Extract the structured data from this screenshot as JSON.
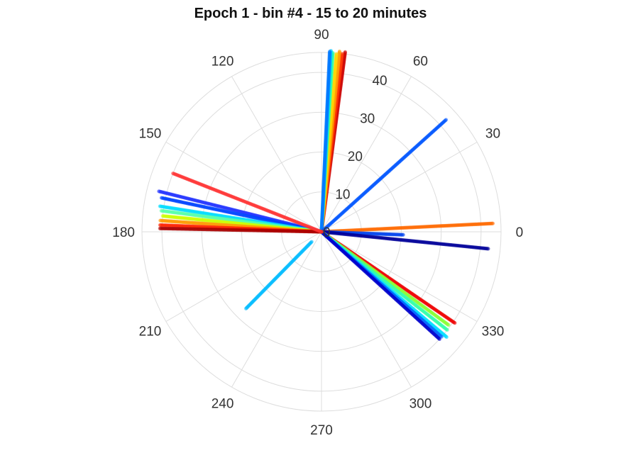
{
  "chart_data": {
    "type": "scatter",
    "subtype": "polar",
    "title": "Epoch 1 - bin #4 - 15 to 20 minutes",
    "angle_unit": "degrees",
    "angle_ticks": [
      "0",
      "30",
      "60",
      "90",
      "120",
      "150",
      "180",
      "210",
      "240",
      "270",
      "300",
      "330"
    ],
    "angle_tick_values": [
      0,
      30,
      60,
      90,
      120,
      150,
      180,
      210,
      240,
      270,
      300,
      330
    ],
    "radial_ticks": [
      "0",
      "10",
      "20",
      "30",
      "40"
    ],
    "radial_tick_values": [
      0,
      10,
      20,
      30,
      40
    ],
    "rlim": [
      0,
      45
    ],
    "grid": true,
    "colormap": "jet (point color varies by series)",
    "series": [
      {
        "angle": 82.5,
        "r_min": 0,
        "r_max": 45.5,
        "color": "#cc0000"
      },
      {
        "angle": 83.4,
        "r_min": 0,
        "r_max": 45.0,
        "color": "#ff3300"
      },
      {
        "angle": 84.3,
        "r_min": 0,
        "r_max": 45.5,
        "color": "#ff9900"
      },
      {
        "angle": 85.2,
        "r_min": 0,
        "r_max": 44.8,
        "color": "#ffd500"
      },
      {
        "angle": 86.4,
        "r_min": 0,
        "r_max": 45.0,
        "color": "#33ff99"
      },
      {
        "angle": 87.0,
        "r_min": 0,
        "r_max": 45.5,
        "color": "#00ccff"
      },
      {
        "angle": 87.4,
        "r_min": 0,
        "r_max": 45.3,
        "color": "#0077ff"
      },
      {
        "angle": 42.0,
        "r_min": 0,
        "r_max": 42.0,
        "color": "#0055ff"
      },
      {
        "angle": 2.8,
        "r_min": 0,
        "r_max": 43.0,
        "color": "#ff6a00"
      },
      {
        "angle": -2.1,
        "r_min": 0,
        "r_max": 20.5,
        "color": "#0044ee"
      },
      {
        "angle": -5.8,
        "r_min": 0,
        "r_max": 42.0,
        "color": "#000099"
      },
      {
        "angle": -34.4,
        "r_min": 0,
        "r_max": 40.5,
        "color": "#ee0000"
      },
      {
        "angle": -36.3,
        "r_min": 0,
        "r_max": 39.5,
        "color": "#88ff33"
      },
      {
        "angle": -38.0,
        "r_min": 0,
        "r_max": 40.0,
        "color": "#33ffaa"
      },
      {
        "angle": -40.1,
        "r_min": 0,
        "r_max": 41.0,
        "color": "#00ddff"
      },
      {
        "angle": -41.2,
        "r_min": 0,
        "r_max": 40.0,
        "color": "#0066ff"
      },
      {
        "angle": -42.3,
        "r_min": 0,
        "r_max": 40.0,
        "color": "#0000cc"
      },
      {
        "angle": 225.5,
        "r_min": 3.5,
        "r_max": 27.0,
        "color": "#00bbff"
      },
      {
        "angle": 166.0,
        "r_min": 0,
        "r_max": 42.0,
        "color": "#2233ff"
      },
      {
        "angle": 168.0,
        "r_min": 0,
        "r_max": 41.0,
        "color": "#0044ff"
      },
      {
        "angle": 171.0,
        "r_min": 0,
        "r_max": 41.0,
        "color": "#00ddff"
      },
      {
        "angle": 172.5,
        "r_min": 0,
        "r_max": 40.5,
        "color": "#55ffaa"
      },
      {
        "angle": 174.3,
        "r_min": 0,
        "r_max": 40.0,
        "color": "#ccff00"
      },
      {
        "angle": 176.0,
        "r_min": 0,
        "r_max": 40.5,
        "color": "#ff9900"
      },
      {
        "angle": 177.6,
        "r_min": 0,
        "r_max": 40.5,
        "color": "#ff2200"
      },
      {
        "angle": 178.8,
        "r_min": 0,
        "r_max": 40.5,
        "color": "#aa0000"
      },
      {
        "angle": 158.5,
        "r_min": 0,
        "r_max": 40.0,
        "color": "#ff3333"
      }
    ]
  }
}
